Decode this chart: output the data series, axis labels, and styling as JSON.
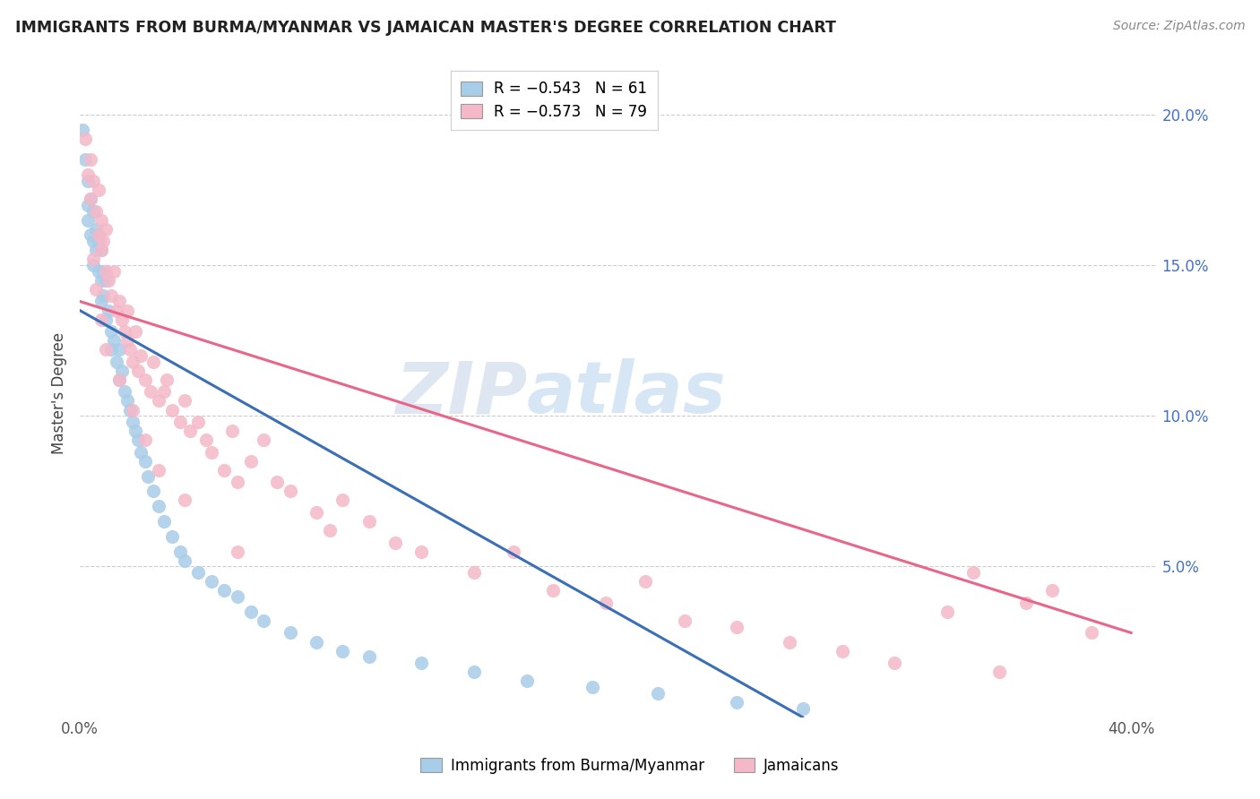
{
  "title": "IMMIGRANTS FROM BURMA/MYANMAR VS JAMAICAN MASTER'S DEGREE CORRELATION CHART",
  "source": "Source: ZipAtlas.com",
  "ylabel": "Master's Degree",
  "ylim": [
    0.0,
    0.215
  ],
  "xlim": [
    0.0,
    0.41
  ],
  "xticks": [
    0.0,
    0.1,
    0.2,
    0.3,
    0.4
  ],
  "xtick_labels": [
    "0.0%",
    "",
    "",
    "",
    "40.0%"
  ],
  "yticks": [
    0.05,
    0.1,
    0.15,
    0.2
  ],
  "ytick_labels": [
    "5.0%",
    "10.0%",
    "15.0%",
    "20.0%"
  ],
  "legend_blue_label": "R = −0.543   N = 61",
  "legend_pink_label": "R = −0.573   N = 79",
  "legend_bottom_blue": "Immigrants from Burma/Myanmar",
  "legend_bottom_pink": "Jamaicans",
  "blue_color": "#a8cde8",
  "pink_color": "#f4b8c8",
  "blue_line_color": "#3a6fb5",
  "pink_line_color": "#e8668a",
  "watermark_zip": "ZIP",
  "watermark_atlas": "atlas",
  "blue_line_x0": 0.0,
  "blue_line_y0": 0.135,
  "blue_line_x1": 0.275,
  "blue_line_y1": 0.0,
  "pink_line_x0": 0.0,
  "pink_line_y0": 0.138,
  "pink_line_x1": 0.4,
  "pink_line_y1": 0.028,
  "blue_scatter_x": [
    0.001,
    0.002,
    0.003,
    0.003,
    0.003,
    0.004,
    0.004,
    0.005,
    0.005,
    0.005,
    0.006,
    0.006,
    0.007,
    0.007,
    0.008,
    0.008,
    0.008,
    0.009,
    0.009,
    0.01,
    0.01,
    0.011,
    0.012,
    0.012,
    0.013,
    0.014,
    0.015,
    0.015,
    0.016,
    0.017,
    0.018,
    0.019,
    0.02,
    0.021,
    0.022,
    0.023,
    0.025,
    0.026,
    0.028,
    0.03,
    0.032,
    0.035,
    0.038,
    0.04,
    0.045,
    0.05,
    0.055,
    0.06,
    0.065,
    0.07,
    0.08,
    0.09,
    0.1,
    0.11,
    0.13,
    0.15,
    0.17,
    0.195,
    0.22,
    0.25,
    0.275
  ],
  "blue_scatter_y": [
    0.195,
    0.185,
    0.178,
    0.17,
    0.165,
    0.172,
    0.16,
    0.168,
    0.158,
    0.15,
    0.162,
    0.155,
    0.158,
    0.148,
    0.155,
    0.145,
    0.138,
    0.148,
    0.14,
    0.145,
    0.132,
    0.135,
    0.128,
    0.122,
    0.125,
    0.118,
    0.122,
    0.112,
    0.115,
    0.108,
    0.105,
    0.102,
    0.098,
    0.095,
    0.092,
    0.088,
    0.085,
    0.08,
    0.075,
    0.07,
    0.065,
    0.06,
    0.055,
    0.052,
    0.048,
    0.045,
    0.042,
    0.04,
    0.035,
    0.032,
    0.028,
    0.025,
    0.022,
    0.02,
    0.018,
    0.015,
    0.012,
    0.01,
    0.008,
    0.005,
    0.003
  ],
  "pink_scatter_x": [
    0.002,
    0.003,
    0.004,
    0.004,
    0.005,
    0.006,
    0.007,
    0.007,
    0.008,
    0.008,
    0.009,
    0.01,
    0.01,
    0.011,
    0.012,
    0.013,
    0.014,
    0.015,
    0.016,
    0.017,
    0.018,
    0.018,
    0.019,
    0.02,
    0.021,
    0.022,
    0.023,
    0.025,
    0.027,
    0.028,
    0.03,
    0.032,
    0.033,
    0.035,
    0.038,
    0.04,
    0.042,
    0.045,
    0.048,
    0.05,
    0.055,
    0.058,
    0.06,
    0.065,
    0.07,
    0.075,
    0.08,
    0.09,
    0.095,
    0.1,
    0.11,
    0.12,
    0.13,
    0.15,
    0.165,
    0.18,
    0.2,
    0.215,
    0.23,
    0.25,
    0.27,
    0.29,
    0.31,
    0.33,
    0.35,
    0.37,
    0.385,
    0.005,
    0.006,
    0.008,
    0.01,
    0.015,
    0.02,
    0.025,
    0.03,
    0.04,
    0.06,
    0.34,
    0.36
  ],
  "pink_scatter_y": [
    0.192,
    0.18,
    0.185,
    0.172,
    0.178,
    0.168,
    0.175,
    0.16,
    0.165,
    0.155,
    0.158,
    0.162,
    0.148,
    0.145,
    0.14,
    0.148,
    0.135,
    0.138,
    0.132,
    0.128,
    0.125,
    0.135,
    0.122,
    0.118,
    0.128,
    0.115,
    0.12,
    0.112,
    0.108,
    0.118,
    0.105,
    0.108,
    0.112,
    0.102,
    0.098,
    0.105,
    0.095,
    0.098,
    0.092,
    0.088,
    0.082,
    0.095,
    0.078,
    0.085,
    0.092,
    0.078,
    0.075,
    0.068,
    0.062,
    0.072,
    0.065,
    0.058,
    0.055,
    0.048,
    0.055,
    0.042,
    0.038,
    0.045,
    0.032,
    0.03,
    0.025,
    0.022,
    0.018,
    0.035,
    0.015,
    0.042,
    0.028,
    0.152,
    0.142,
    0.132,
    0.122,
    0.112,
    0.102,
    0.092,
    0.082,
    0.072,
    0.055,
    0.048,
    0.038
  ]
}
